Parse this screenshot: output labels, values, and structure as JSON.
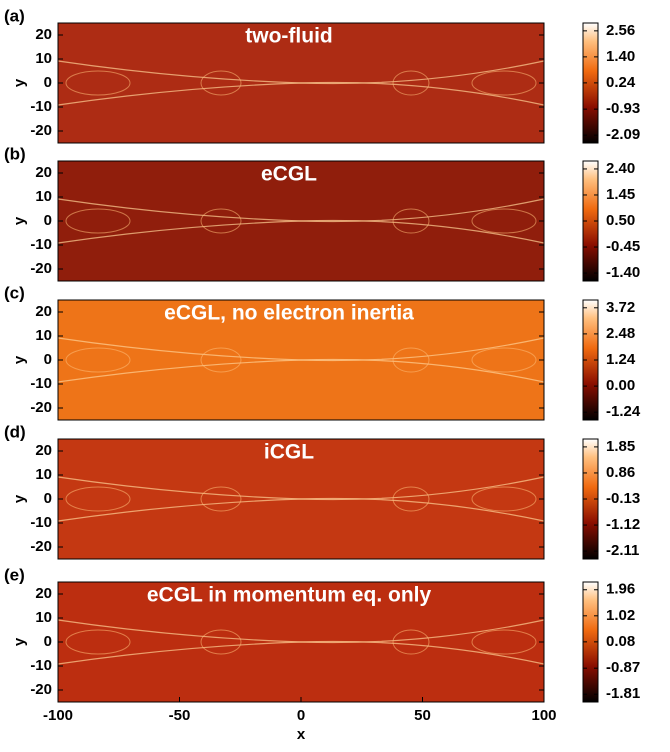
{
  "chart_data": [
    {
      "type": "heatmap",
      "label": "(a)",
      "title": "two-fluid",
      "y_label": "y",
      "color": "#ad2c14",
      "xlim": [
        -100,
        100
      ],
      "ylim": [
        -25,
        25
      ],
      "yticks": [
        20,
        10,
        0,
        -10,
        -20
      ],
      "clim": [
        -2.44,
        2.91
      ],
      "cticks": [
        2.56,
        {
          "value": 1.4,
          "label": "1.40"
        },
        0.24,
        -0.93,
        -2.09
      ]
    },
    {
      "type": "heatmap",
      "label": "(b)",
      "title": "eCGL",
      "y_label": "y",
      "color": "#901e0c",
      "xlim": [
        -100,
        100
      ],
      "ylim": [
        -25,
        25
      ],
      "yticks": [
        20,
        10,
        0,
        -10,
        -20
      ],
      "clim": [
        -1.69,
        2.69
      ],
      "cticks": [
        {
          "value": 2.4,
          "label": "2.40"
        },
        1.45,
        {
          "value": 0.5,
          "label": "0.50"
        },
        -0.45,
        {
          "value": -1.4,
          "label": "-1.40"
        }
      ]
    },
    {
      "type": "heatmap",
      "label": "(c)",
      "title": "eCGL, no electron inertia",
      "y_label": "y",
      "color": "#ee7418",
      "xlim": [
        -100,
        100
      ],
      "ylim": [
        -25,
        25
      ],
      "yticks": [
        20,
        10,
        0,
        -10,
        -20
      ],
      "clim": [
        -1.61,
        4.09
      ],
      "cticks": [
        3.72,
        2.48,
        1.24,
        {
          "value": 0,
          "label": "0.00"
        },
        -1.24
      ]
    },
    {
      "type": "heatmap",
      "label": "(d)",
      "title": "iCGL",
      "y_label": "y",
      "color": "#c43812",
      "xlim": [
        -100,
        100
      ],
      "ylim": [
        -25,
        25
      ],
      "yticks": [
        20,
        10,
        0,
        -10,
        -20
      ],
      "clim": [
        -2.41,
        2.15
      ],
      "cticks": [
        1.85,
        0.86,
        -0.13,
        -1.12,
        -2.11
      ]
    },
    {
      "type": "heatmap",
      "label": "(e)",
      "title": "eCGL in momentum eq. only",
      "y_label": "y",
      "color": "#bc2e10",
      "xlim": [
        -100,
        100
      ],
      "ylim": [
        -25,
        25
      ],
      "yticks": [
        20,
        10,
        0,
        -10,
        -20
      ],
      "xticks": [
        -100,
        -50,
        0,
        50,
        100
      ],
      "x_label": "x",
      "clim": [
        -2.09,
        2.24
      ],
      "cticks": [
        1.96,
        1.02,
        0.08,
        -0.87,
        -1.81
      ]
    }
  ]
}
